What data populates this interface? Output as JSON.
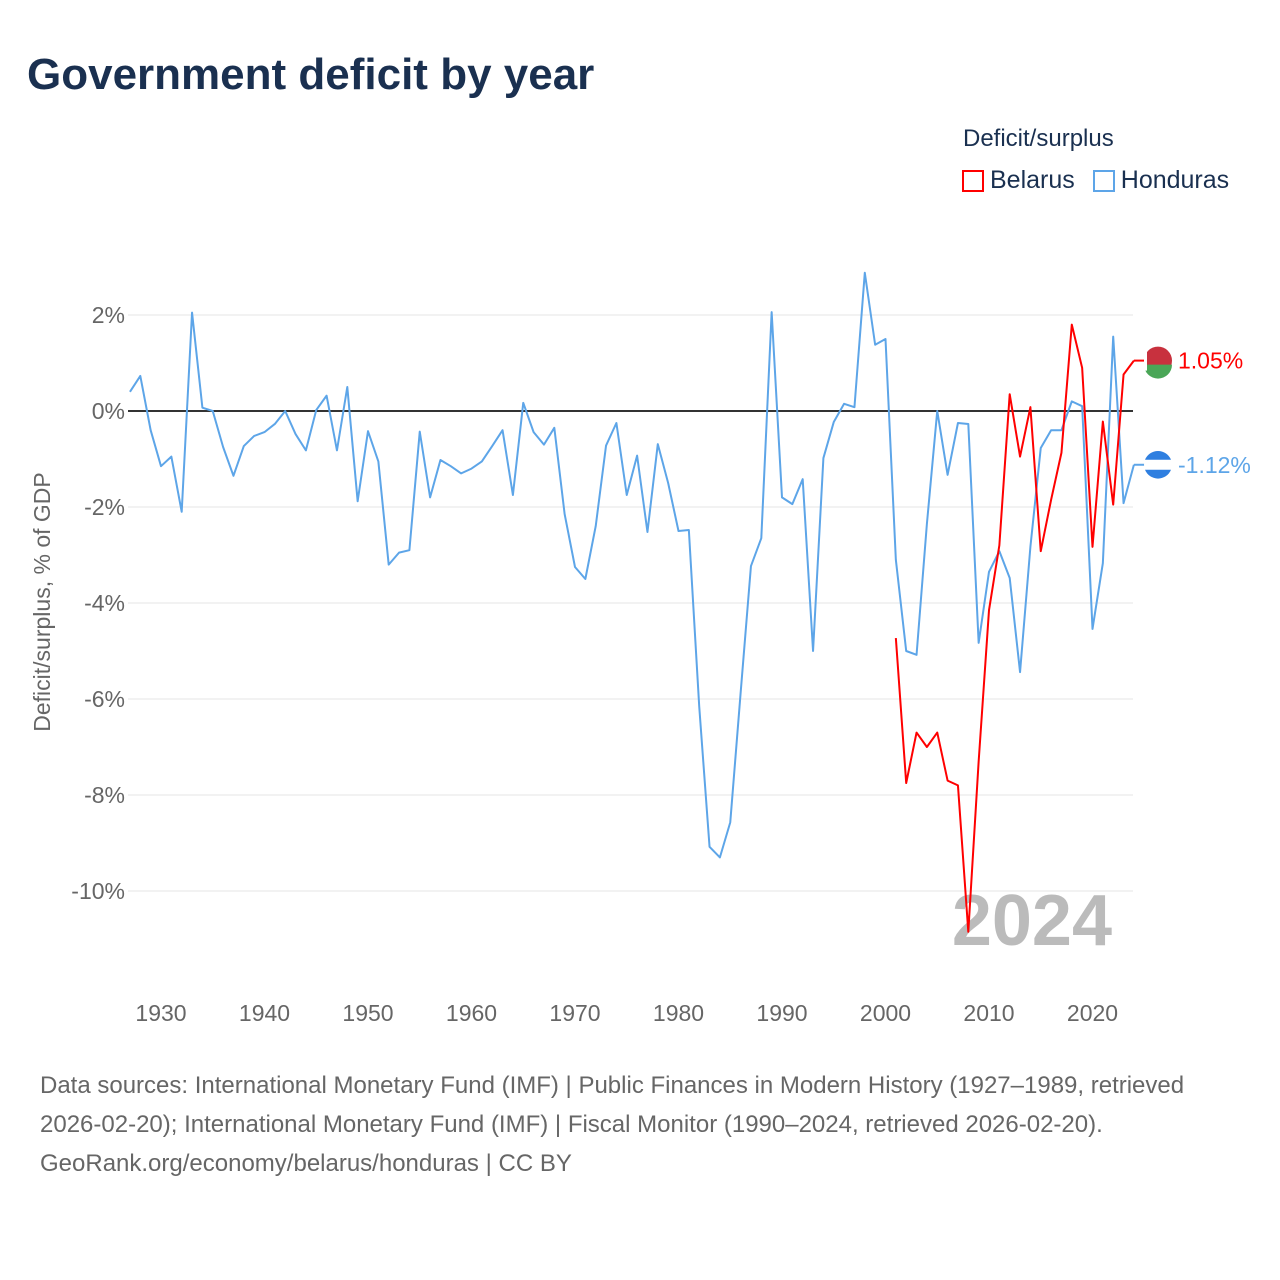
{
  "title": "Government deficit by year",
  "legend": {
    "title": "Deficit/surplus",
    "items": [
      {
        "name": "Belarus",
        "color": "#ff0000"
      },
      {
        "name": "Honduras",
        "color": "#5da5e8"
      }
    ]
  },
  "footer": {
    "sources": "Data sources: International Monetary Fund (IMF) | Public Finances in Modern History (1927–1989, retrieved 2026-02-20); International Monetary Fund (IMF) | Fiscal Monitor (1990–2024, retrieved 2026-02-20).",
    "credit": "GeoRank.org/economy/belarus/honduras | CC BY"
  },
  "chart_data": {
    "type": "line",
    "title": "Government deficit by year",
    "ylabel": "Deficit/surplus, % of GDP",
    "xlabel": "",
    "xlim": [
      1927,
      2024
    ],
    "ylim": [
      -11.5,
      3.2
    ],
    "xticks": [
      "1930",
      "1940",
      "1950",
      "1960",
      "1970",
      "1980",
      "1990",
      "2000",
      "2010",
      "2020"
    ],
    "yticks": [
      {
        "v": 2,
        "label": "2%"
      },
      {
        "v": 0,
        "label": "0%"
      },
      {
        "v": -2,
        "label": "-2%"
      },
      {
        "v": -4,
        "label": "-4%"
      },
      {
        "v": -6,
        "label": "-6%"
      },
      {
        "v": -8,
        "label": "-8%"
      },
      {
        "v": -10,
        "label": "-10%"
      }
    ],
    "year_label": "2024",
    "series": [
      {
        "name": "Honduras",
        "color": "#5da5e8",
        "end_label": "-1.12%",
        "start_year": 1927,
        "values": [
          0.4,
          0.73,
          -0.4,
          -1.15,
          -0.95,
          -2.1,
          2.05,
          0.07,
          0.0,
          -0.75,
          -1.35,
          -0.73,
          -0.52,
          -0.44,
          -0.27,
          0.0,
          -0.48,
          -0.82,
          0.02,
          0.32,
          -0.82,
          0.5,
          -1.88,
          -0.42,
          -1.05,
          -3.2,
          -2.95,
          -2.9,
          -0.43,
          -1.8,
          -1.02,
          -1.15,
          -1.3,
          -1.2,
          -1.05,
          -0.73,
          -0.4,
          -1.75,
          0.17,
          -0.44,
          -0.7,
          -0.35,
          -2.15,
          -3.25,
          -3.5,
          -2.4,
          -0.72,
          -0.25,
          -1.75,
          -0.93,
          -2.52,
          -0.69,
          -1.5,
          -2.5,
          -2.48,
          -6.15,
          -9.08,
          -9.3,
          -8.57,
          -5.88,
          -3.23,
          -2.65,
          2.06,
          -1.8,
          -1.94,
          -1.42,
          -5.0,
          -0.98,
          -0.23,
          0.15,
          0.08,
          2.88,
          1.38,
          1.5,
          -3.1,
          -5.0,
          -5.08,
          -2.35,
          0.0,
          -1.33,
          -0.25,
          -0.27,
          -4.83,
          -3.35,
          -2.92,
          -3.48,
          -5.44,
          -2.83,
          -0.77,
          -0.4,
          -0.4,
          0.2,
          0.1,
          -4.54,
          -3.17,
          1.55,
          -1.92,
          -1.12
        ]
      },
      {
        "name": "Belarus",
        "color": "#ff0000",
        "end_label": "1.05%",
        "start_year": 2001,
        "values": [
          -4.73,
          -7.75,
          -6.7,
          -7.0,
          -6.7,
          -7.7,
          -7.8,
          -10.85,
          -7.3,
          -4.15,
          -2.8,
          0.35,
          -0.95,
          0.08,
          -2.92,
          -1.85,
          -0.87,
          1.8,
          0.9,
          -2.83,
          -0.22,
          -1.95,
          0.76,
          1.05
        ]
      }
    ]
  }
}
